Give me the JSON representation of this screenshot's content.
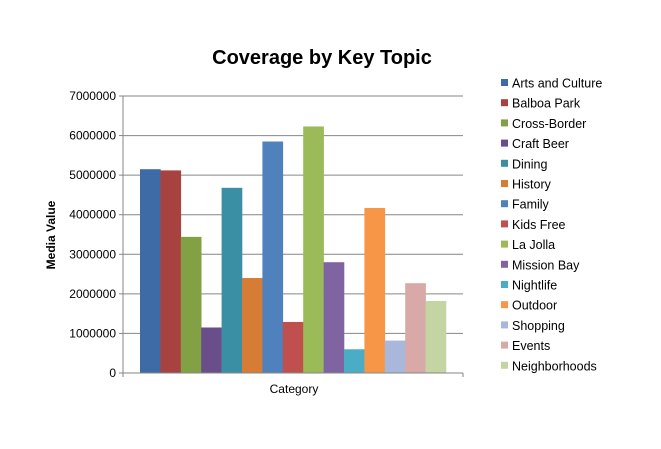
{
  "chart_data": {
    "type": "bar",
    "title": "Coverage by Key Topic",
    "xlabel": "Category",
    "ylabel": "Media Value",
    "categories": [
      "Category"
    ],
    "ylim": [
      0,
      7000000
    ],
    "yticks": [
      0,
      1000000,
      2000000,
      3000000,
      4000000,
      5000000,
      6000000,
      7000000
    ],
    "ytick_labels": [
      "0",
      "1000000",
      "2000000",
      "3000000",
      "4000000",
      "5000000",
      "6000000",
      "7000000"
    ],
    "grid": true,
    "legend_position": "right",
    "series": [
      {
        "name": "Arts and Culture",
        "values": [
          5150000
        ],
        "color": "#3E6AA6"
      },
      {
        "name": "Balboa Park",
        "values": [
          5120000
        ],
        "color": "#A84240"
      },
      {
        "name": "Cross-Border",
        "values": [
          3440000
        ],
        "color": "#82A044"
      },
      {
        "name": "Craft Beer",
        "values": [
          1150000
        ],
        "color": "#6A4E8C"
      },
      {
        "name": "Dining",
        "values": [
          4680000
        ],
        "color": "#3A8FA5"
      },
      {
        "name": "History",
        "values": [
          2400000
        ],
        "color": "#D77C35"
      },
      {
        "name": "Family",
        "values": [
          5850000
        ],
        "color": "#4F81BD"
      },
      {
        "name": "Kids Free",
        "values": [
          1290000
        ],
        "color": "#C0504D"
      },
      {
        "name": "La Jolla",
        "values": [
          6230000
        ],
        "color": "#9BBB59"
      },
      {
        "name": "Mission Bay",
        "values": [
          2800000
        ],
        "color": "#8064A2"
      },
      {
        "name": "Nightlife",
        "values": [
          600000
        ],
        "color": "#4BACC6"
      },
      {
        "name": "Outdoor",
        "values": [
          4170000
        ],
        "color": "#F79646"
      },
      {
        "name": "Shopping",
        "values": [
          820000
        ],
        "color": "#A9B8DA"
      },
      {
        "name": "Events",
        "values": [
          2270000
        ],
        "color": "#D9A9A8"
      },
      {
        "name": "Neighborhoods",
        "values": [
          1820000
        ],
        "color": "#C4D5A3"
      }
    ]
  }
}
